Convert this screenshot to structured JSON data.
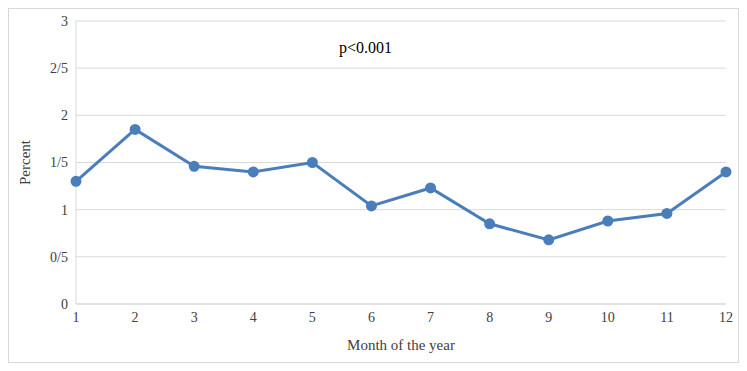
{
  "chart_data": {
    "type": "line",
    "annotation": "p<0.001",
    "x_label": "Month of the year",
    "y_label": "Percent",
    "categories": [
      "1",
      "2",
      "3",
      "4",
      "5",
      "6",
      "7",
      "8",
      "9",
      "10",
      "11",
      "12"
    ],
    "values": [
      1.3,
      1.85,
      1.46,
      1.4,
      1.5,
      1.04,
      1.23,
      0.85,
      0.68,
      0.88,
      0.96,
      1.4
    ],
    "color": "#4a7ebb",
    "marker": "circle",
    "ylim": [
      0,
      3
    ],
    "yticks": [
      0,
      {
        "value": 0.5,
        "label": "0/5"
      },
      1,
      {
        "value": 1.5,
        "label": "1/5"
      },
      2,
      {
        "value": 2.5,
        "label": "2/5"
      },
      3
    ],
    "grid": true
  }
}
